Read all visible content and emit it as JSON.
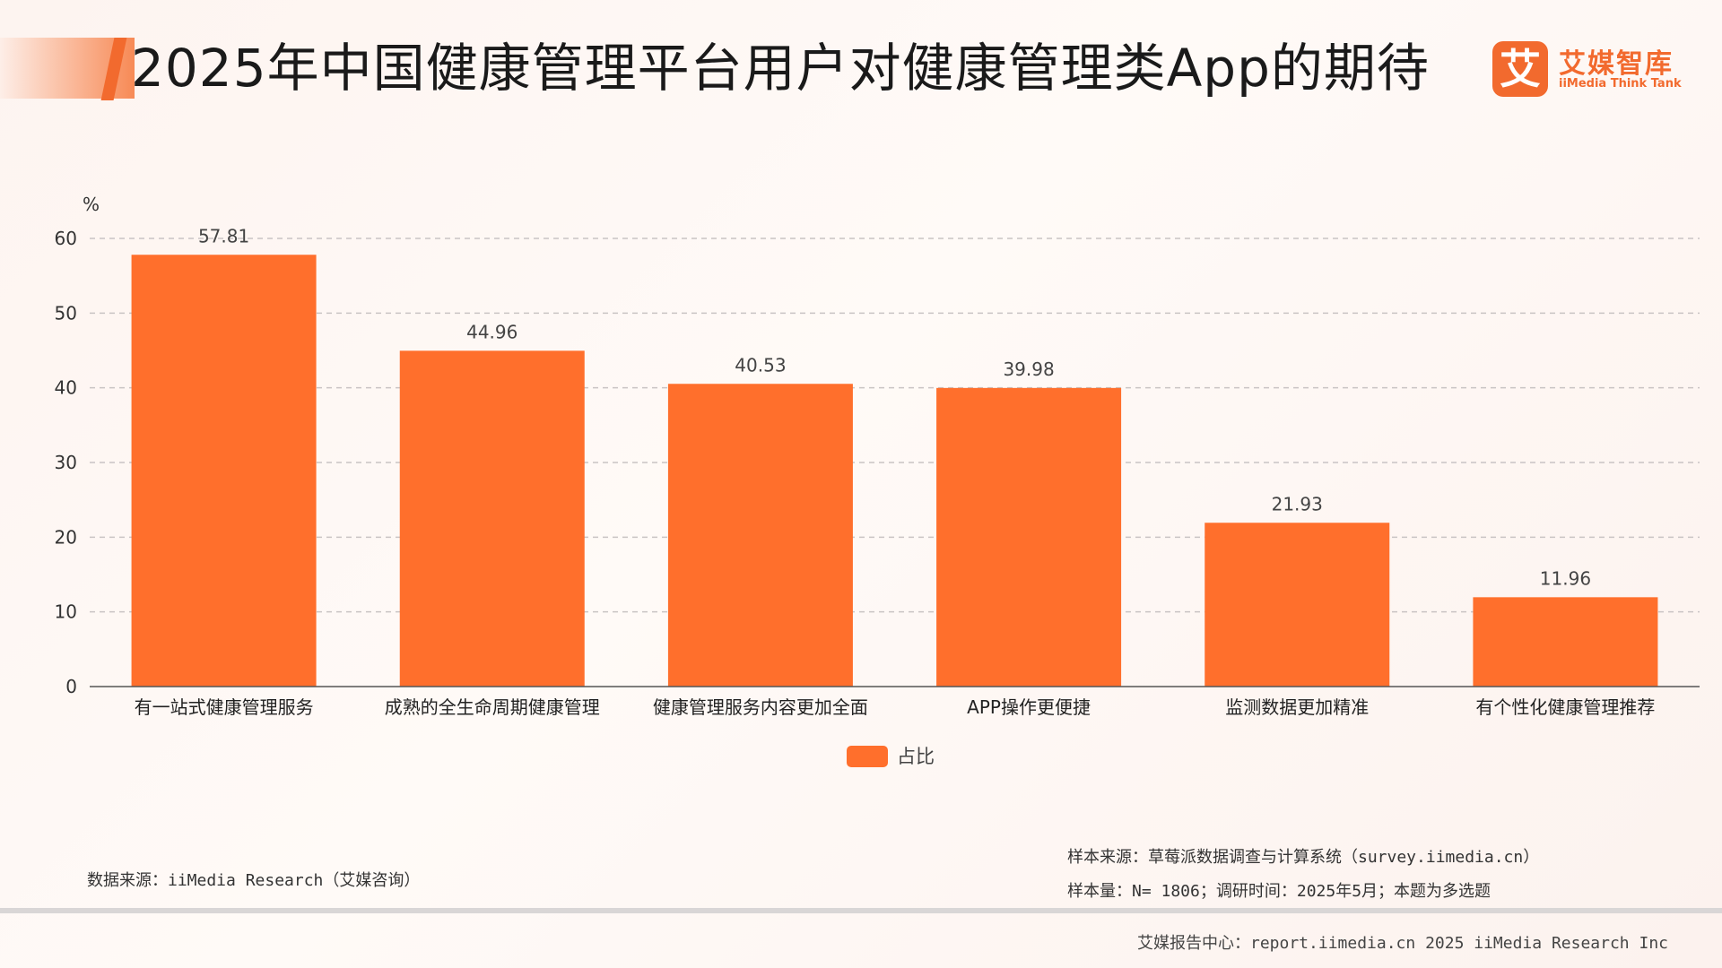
{
  "header": {
    "title": "2025年中国健康管理平台用户对健康管理类App的期待"
  },
  "logo": {
    "mark": "艾",
    "cn": "艾媒智库",
    "en": "iiMedia Think Tank"
  },
  "colors": {
    "bar": "#ff6f2c",
    "accent": "#f26a2e",
    "grid": "#c9c4c4"
  },
  "chart_data": {
    "type": "bar",
    "categories": [
      "有一站式健康管理服务",
      "成熟的全生命周期健康管理",
      "健康管理服务内容更加全面",
      "APP操作更便捷",
      "监测数据更加精准",
      "有个性化健康管理推荐"
    ],
    "series": [
      {
        "name": "占比",
        "values": [
          57.81,
          44.96,
          40.53,
          39.98,
          21.93,
          11.96
        ]
      }
    ],
    "value_labels": [
      "57.81",
      "44.96",
      "40.53",
      "39.98",
      "21.93",
      "11.96"
    ],
    "ylabel": "%",
    "ylim": [
      0,
      60
    ],
    "yticks": [
      0,
      10,
      20,
      30,
      40,
      50,
      60
    ],
    "ytick_labels": [
      "0",
      "10",
      "20",
      "30",
      "40",
      "50",
      "60"
    ],
    "grid": true,
    "legend_position": "bottom-center"
  },
  "footer": {
    "data_source": "数据来源：iiMedia Research（艾媒咨询）",
    "sample_source": "样本来源：草莓派数据调查与计算系统（survey.iimedia.cn）",
    "sample_size": "样本量：N= 1806；调研时间：2025年5月；本题为多选题",
    "report_center": "艾媒报告中心：report.iimedia.cn  2025 iiMedia Research Inc"
  }
}
